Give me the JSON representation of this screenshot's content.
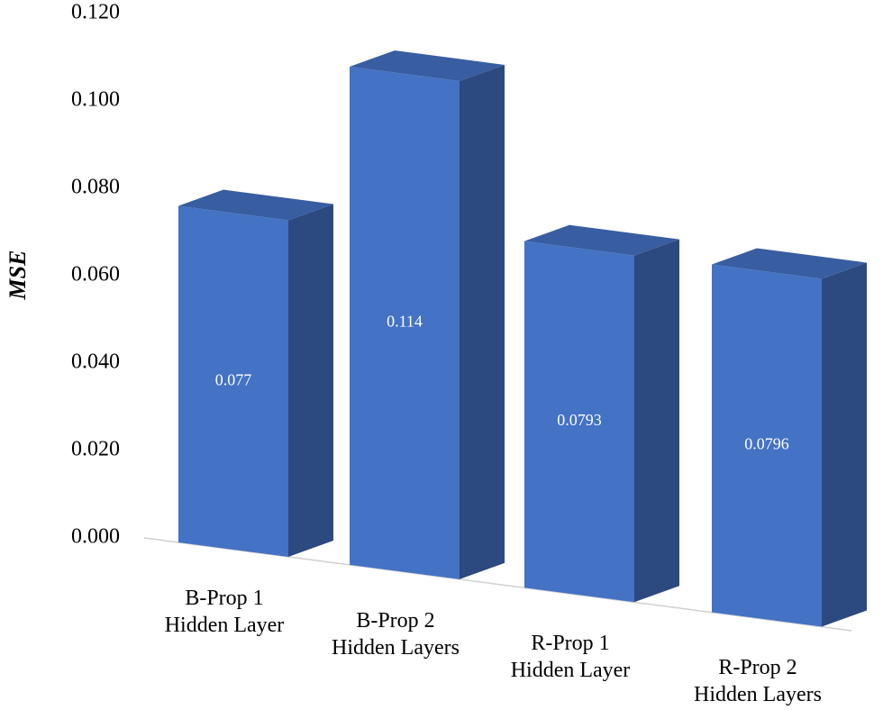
{
  "chart_data": {
    "type": "bar3d",
    "y_label": "MSE",
    "categories": [
      "B-Prop 1\nHidden Layer",
      "B-Prop 2\nHidden Layers",
      "R-Prop 1\nHidden Layer",
      "R-Prop 2\nHidden Layers"
    ],
    "values": [
      0.077,
      0.114,
      0.0793,
      0.0796
    ],
    "color": "#4472c4",
    "ylim": [
      0,
      0.12
    ],
    "yticks": [
      {
        "value": 0,
        "label": "0.000"
      },
      {
        "value": 0.02,
        "label": "0.020"
      },
      {
        "value": 0.04,
        "label": "0.040"
      },
      {
        "value": 0.06,
        "label": "0.060"
      },
      {
        "value": 0.08,
        "label": "0.080"
      },
      {
        "value": 0.1,
        "label": "0.100"
      },
      {
        "value": 0.12,
        "label": "0.120"
      }
    ],
    "grid": false
  }
}
